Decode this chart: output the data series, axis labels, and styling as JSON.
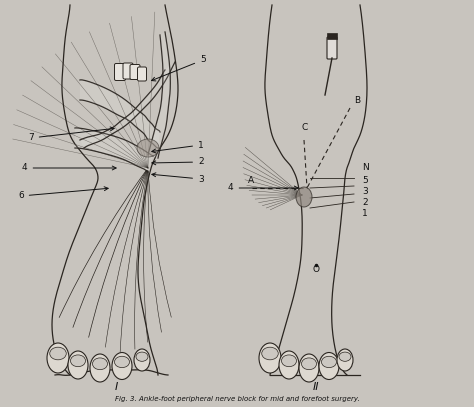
{
  "bg": "#c8c4be",
  "c": "#2a2520",
  "c_light": "#5a5550",
  "caption": "Fig. 3. Ankle-foot peripheral nerve block for mid and forefoot surgery.",
  "panel_I": "I",
  "panel_II": "II",
  "figsize": [
    4.74,
    4.07
  ],
  "dpi": 100
}
